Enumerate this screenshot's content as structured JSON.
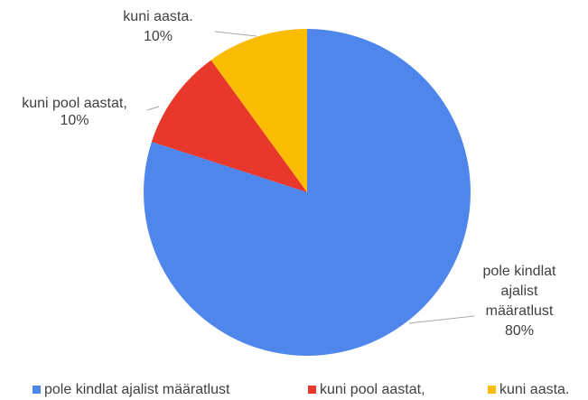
{
  "chart_data": {
    "type": "pie",
    "categories": [
      "pole kindlat ajalist määratlust",
      "kuni pool aastat,",
      "kuni aasta."
    ],
    "values": [
      80,
      10,
      10
    ],
    "value_labels": [
      "80%",
      "10%",
      "10%"
    ],
    "colors": [
      "#4f86ec",
      "#e8382b",
      "#fbbc04"
    ],
    "legend": "bottom"
  }
}
